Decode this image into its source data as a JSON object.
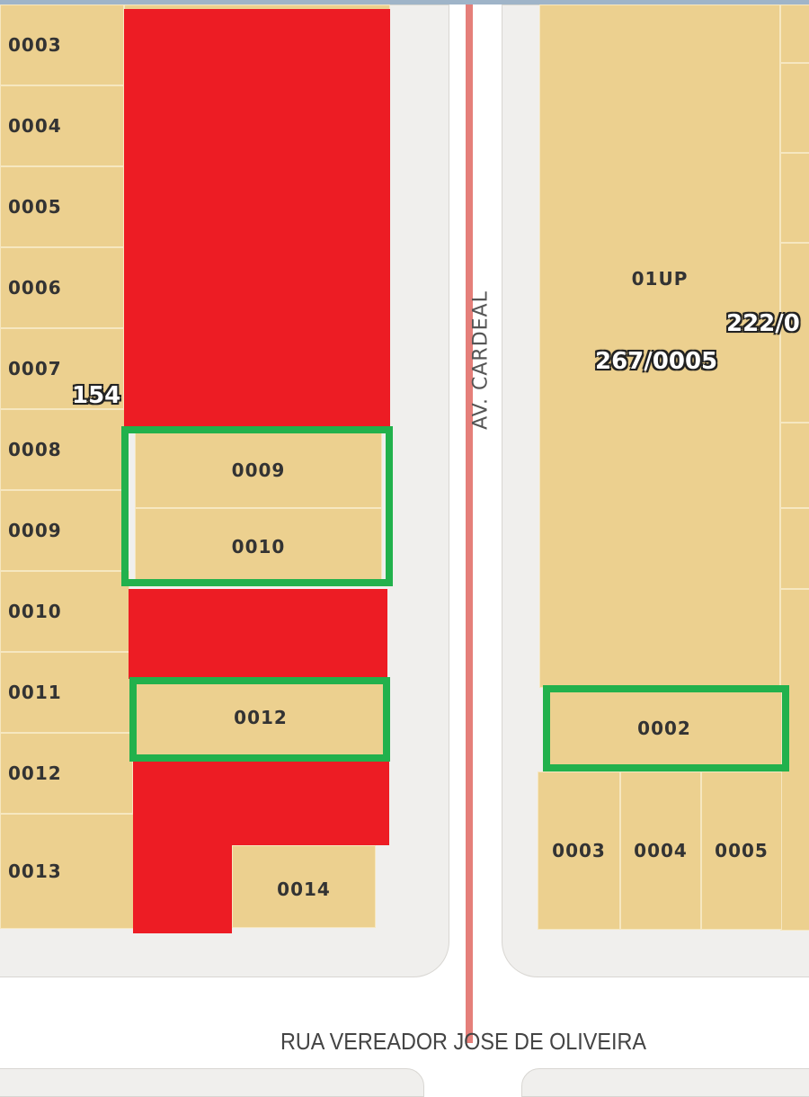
{
  "map": {
    "left_parcels": [
      "0003",
      "0004",
      "0005",
      "0006",
      "0007",
      "0008",
      "0009",
      "0010",
      "0011",
      "0012",
      "0013"
    ],
    "middle_parcels": [
      "0009",
      "0010",
      "0012",
      "0014"
    ],
    "right_parcels": {
      "main": "01UP",
      "highlight": "0002",
      "bottom": [
        "0003",
        "0004",
        "0005"
      ]
    },
    "registry_labels": {
      "left": "154",
      "center": "267/0005",
      "right": "222/0"
    },
    "streets": {
      "vertical": "AV. CARDEAL",
      "horizontal": "RUA VEREADOR JOSE DE OLIVEIRA"
    },
    "colors": {
      "lot": "#ecd08f",
      "marked_red": "#ed1c24",
      "marked_green": "#22b14c",
      "street_line": "#e57f7a"
    }
  }
}
